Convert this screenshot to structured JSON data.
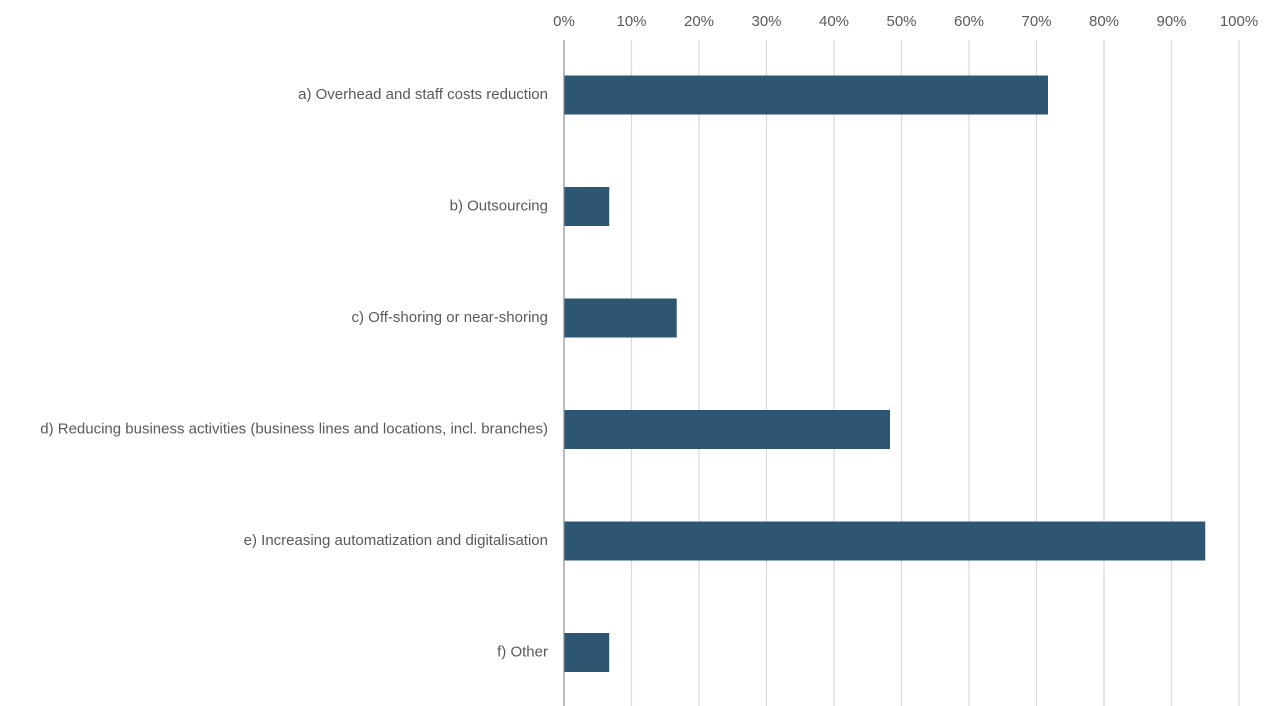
{
  "chart_data": {
    "type": "bar",
    "orientation": "horizontal",
    "title": "",
    "xlabel": "",
    "ylabel": "",
    "categories": [
      "a) Overhead and staff costs reduction",
      "b) Outsourcing",
      "c) Off-shoring or near-shoring",
      "d) Reducing business activities (business lines and locations, incl. branches)",
      "e) Increasing automatization and digitalisation",
      "f) Other"
    ],
    "values": [
      0.717,
      0.067,
      0.167,
      0.483,
      0.95,
      0.067
    ],
    "xlim": [
      0,
      1
    ],
    "x_ticks": [
      0,
      0.1,
      0.2,
      0.3,
      0.4,
      0.5,
      0.6,
      0.7,
      0.8,
      0.9,
      1.0
    ],
    "x_tick_labels": [
      "0%",
      "10%",
      "20%",
      "30%",
      "40%",
      "50%",
      "60%",
      "70%",
      "80%",
      "90%",
      "100%"
    ],
    "x_axis_position": "top",
    "grid": true,
    "legend": "none",
    "bar_color": "#2e5572",
    "gridline_color": "#d9d9d9",
    "axis_color": "#8c8c8c",
    "text_color": "#595959"
  }
}
